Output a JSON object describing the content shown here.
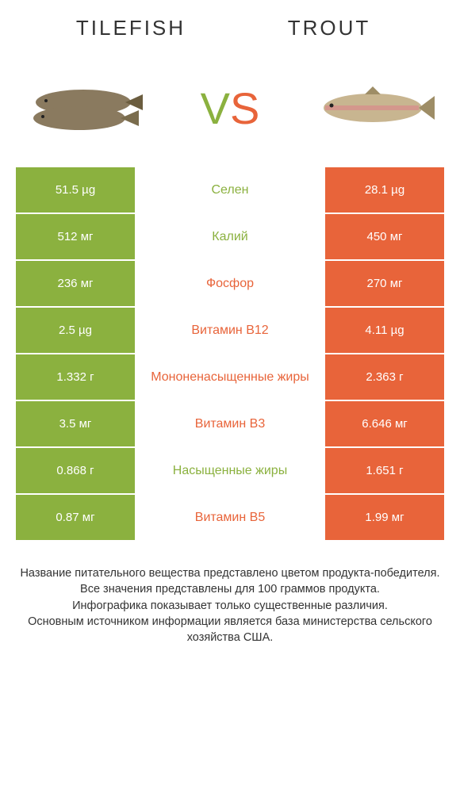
{
  "colors": {
    "left": "#8bb13f",
    "right": "#e8643a",
    "text_dark": "#333333"
  },
  "header": {
    "left_title": "TILEFISH",
    "right_title": "TROUT"
  },
  "vs": {
    "v": "V",
    "s": "S",
    "v_color": "#8bb13f",
    "s_color": "#e8643a"
  },
  "rows": [
    {
      "left": "51.5 µg",
      "label": "Селен",
      "right": "28.1 µg",
      "label_color": "#8bb13f"
    },
    {
      "left": "512 мг",
      "label": "Калий",
      "right": "450 мг",
      "label_color": "#8bb13f"
    },
    {
      "left": "236 мг",
      "label": "Фосфор",
      "right": "270 мг",
      "label_color": "#e8643a"
    },
    {
      "left": "2.5 µg",
      "label": "Витамин B12",
      "right": "4.11 µg",
      "label_color": "#e8643a"
    },
    {
      "left": "1.332 г",
      "label": "Мононенасыщенные жиры",
      "right": "2.363 г",
      "label_color": "#e8643a"
    },
    {
      "left": "3.5 мг",
      "label": "Витамин B3",
      "right": "6.646 мг",
      "label_color": "#e8643a"
    },
    {
      "left": "0.868 г",
      "label": "Насыщенные жиры",
      "right": "1.651 г",
      "label_color": "#8bb13f"
    },
    {
      "left": "0.87 мг",
      "label": "Витамин B5",
      "right": "1.99 мг",
      "label_color": "#e8643a"
    }
  ],
  "footer": {
    "line1": "Название питательного вещества представлено цветом продукта-победителя.",
    "line2": "Все значения представлены для 100 граммов продукта.",
    "line3": "Инфографика показывает только существенные различия.",
    "line4": "Основным источником информации является база министерства сельского хозяйства США."
  }
}
